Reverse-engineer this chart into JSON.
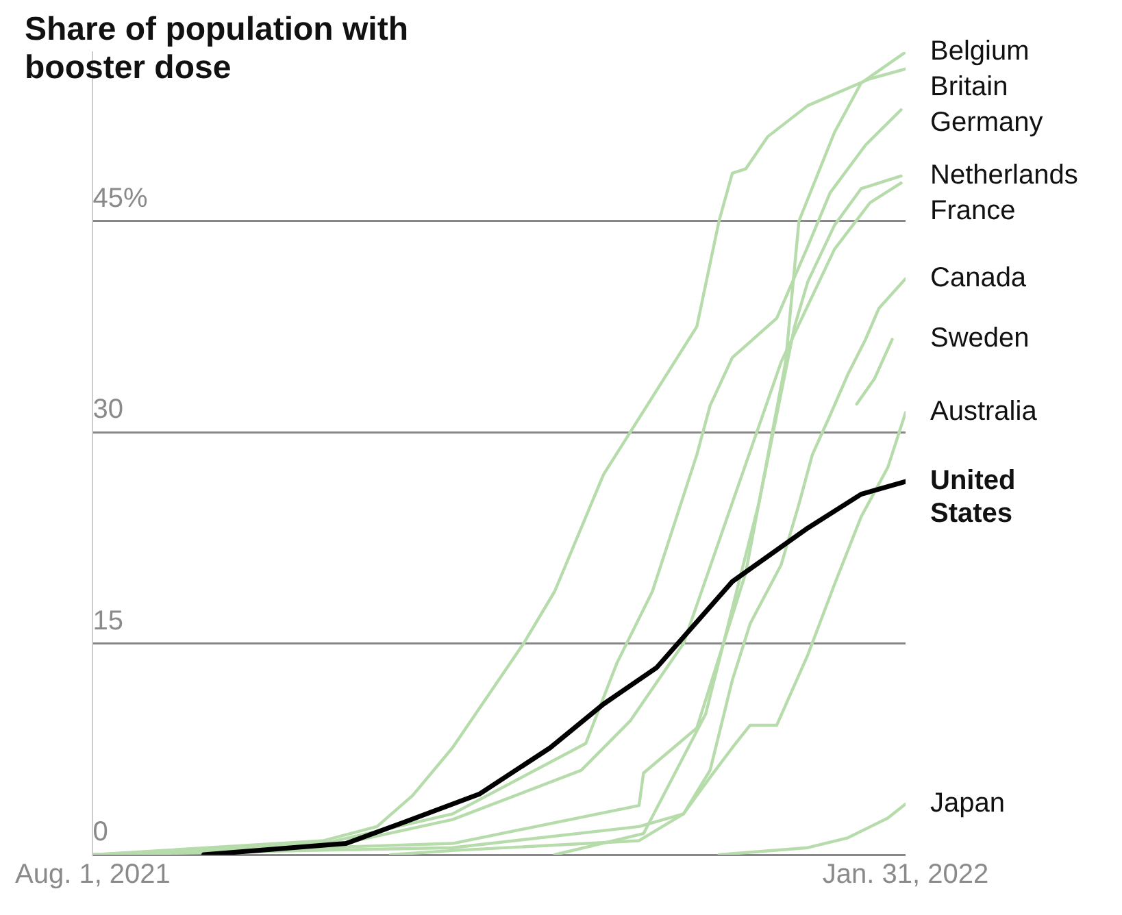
{
  "chart_data": {
    "type": "line",
    "title": "Share of population with booster dose",
    "xlim": [
      "2021-08-01",
      "2022-01-31"
    ],
    "xticks": [
      {
        "value": "2021-08-01",
        "label": "Aug. 1, 2021"
      },
      {
        "value": "2022-01-31",
        "label": "Jan. 31, 2022"
      }
    ],
    "ylim": [
      0,
      57
    ],
    "yticks": [
      0,
      15,
      30,
      {
        "value": 45,
        "label": "45%"
      }
    ],
    "grid": "y",
    "marker": "none",
    "line_style": "solid",
    "series": [
      {
        "name": "Belgium",
        "color": "#b7dcab",
        "x": [
          "2021-08-01",
          "2021-10-21",
          "2021-12-02",
          "2021-12-03",
          "2021-12-15",
          "2021-12-26",
          "2022-01-04",
          "2022-01-07",
          "2022-01-15",
          "2022-01-21",
          "2022-01-31"
        ],
        "values": [
          0,
          0.8,
          3.5,
          5.8,
          9,
          20,
          35,
          45,
          51.3,
          54.8,
          57
        ]
      },
      {
        "name": "Britain",
        "color": "#b7dcab",
        "x": [
          "2021-08-01",
          "2021-09-22",
          "2021-10-04",
          "2021-10-12",
          "2021-10-21",
          "2021-11-06",
          "2021-11-13",
          "2021-11-24",
          "2021-12-15",
          "2021-12-20",
          "2021-12-23",
          "2021-12-26",
          "2021-12-31",
          "2022-01-09",
          "2022-01-23",
          "2022-01-31"
        ],
        "values": [
          0,
          1,
          2,
          4.2,
          7.6,
          15,
          18.7,
          27,
          37.5,
          45,
          48.4,
          48.7,
          51,
          53.2,
          55.1,
          55.8
        ]
      },
      {
        "name": "Germany",
        "color": "#b7dcab",
        "x": [
          "2021-08-01",
          "2021-09-22",
          "2021-10-21",
          "2021-11-20",
          "2021-11-27",
          "2021-12-05",
          "2021-12-15",
          "2021-12-18",
          "2021-12-23",
          "2022-01-02",
          "2022-01-09",
          "2022-01-14",
          "2022-01-22",
          "2022-01-30"
        ],
        "values": [
          0,
          0.8,
          2.9,
          7.9,
          13.6,
          18.7,
          28.4,
          31.9,
          35.3,
          38.1,
          43.2,
          47,
          50.4,
          52.9
        ]
      },
      {
        "name": "Netherlands",
        "color": "#b7dcab",
        "x": [
          "2021-11-13",
          "2021-12-03",
          "2021-12-17",
          "2021-12-29",
          "2022-01-06",
          "2022-01-09",
          "2022-01-15",
          "2022-01-21",
          "2022-01-30"
        ],
        "values": [
          0,
          1.5,
          10,
          25,
          37.5,
          40.7,
          44.7,
          47.3,
          48.2
        ]
      },
      {
        "name": "France",
        "color": "#b7dcab",
        "x": [
          "2021-08-01",
          "2021-09-22",
          "2021-10-21",
          "2021-11-19",
          "2021-11-30",
          "2021-12-12",
          "2021-12-23",
          "2022-01-03",
          "2022-01-15",
          "2022-01-23",
          "2022-01-30"
        ],
        "values": [
          0,
          0.5,
          2.5,
          6,
          9.5,
          15,
          25,
          35,
          43,
          46.3,
          47.7
        ]
      },
      {
        "name": "Canada",
        "color": "#b7dcab",
        "x": [
          "2021-08-01",
          "2021-10-21",
          "2021-12-02",
          "2021-12-12",
          "2021-12-18",
          "2021-12-23",
          "2021-12-27",
          "2022-01-03",
          "2022-01-07",
          "2022-01-10",
          "2022-01-14",
          "2022-01-18",
          "2022-01-22",
          "2022-01-25",
          "2022-01-31"
        ],
        "values": [
          0,
          0.5,
          2,
          2.9,
          6,
          12.4,
          16.4,
          20.6,
          24.9,
          28.4,
          31.2,
          34.1,
          36.6,
          38.8,
          40.9
        ]
      },
      {
        "name": "Sweden",
        "color": "#b7dcab",
        "x": [
          "2022-01-20",
          "2022-01-24",
          "2022-01-28"
        ],
        "values": [
          32,
          33.8,
          36.6
        ]
      },
      {
        "name": "Australia",
        "color": "#b7dcab",
        "x": [
          "2021-10-07",
          "2021-10-21",
          "2021-12-02",
          "2021-12-12",
          "2021-12-18",
          "2021-12-23",
          "2021-12-27",
          "2022-01-02",
          "2022-01-09",
          "2022-01-15",
          "2022-01-21",
          "2022-01-27",
          "2022-01-31"
        ],
        "values": [
          0,
          0.3,
          1,
          2.9,
          5.5,
          7.6,
          9.2,
          9.2,
          14.2,
          19.2,
          24,
          27.5,
          31.4
        ]
      },
      {
        "name": "Japan",
        "color": "#b7dcab",
        "x": [
          "2021-12-20",
          "2022-01-09",
          "2022-01-18",
          "2022-01-27",
          "2022-01-31"
        ],
        "values": [
          0,
          0.5,
          1.2,
          2.6,
          3.6
        ]
      },
      {
        "name": "United States",
        "color": "#000000",
        "x": [
          "2021-08-26",
          "2021-09-27",
          "2021-10-10",
          "2021-10-27",
          "2021-11-12",
          "2021-11-24",
          "2021-12-06",
          "2021-12-23",
          "2022-01-09",
          "2022-01-21",
          "2022-01-31"
        ],
        "values": [
          0,
          0.8,
          2.3,
          4.3,
          7.6,
          10.7,
          13.3,
          19.4,
          23.2,
          25.6,
          26.5
        ]
      }
    ]
  }
}
